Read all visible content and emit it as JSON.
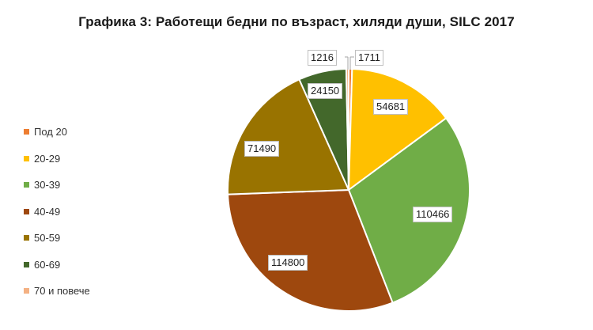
{
  "chart_data": {
    "type": "pie",
    "title": "Графика 3: Работещи бедни по възраст,  хиляди души, SILC 2017",
    "categories": [
      "Под 20",
      "20-29",
      "30-39",
      "40-49",
      "50-59",
      "60-69",
      "70 и повече"
    ],
    "values": [
      1711,
      54681,
      110466,
      114800,
      71490,
      24150,
      1216
    ],
    "colors": [
      "#ED7D31",
      "#FFC000",
      "#70AD47",
      "#9E480E",
      "#997300",
      "#43682B",
      "#F4B183"
    ],
    "start_angle": "top (12 o'clock), clockwise",
    "legend_position": "left",
    "data_labels": true
  },
  "labels": {
    "title": "Графика 3: Работещи бедни по възраст,  хиляди души, SILC 2017",
    "legend": [
      "Под 20",
      "20-29",
      "30-39",
      "40-49",
      "50-59",
      "60-69",
      "70 и повече"
    ],
    "values": [
      "1711",
      "54681",
      "110466",
      "114800",
      "71490",
      "24150",
      "1216"
    ]
  }
}
